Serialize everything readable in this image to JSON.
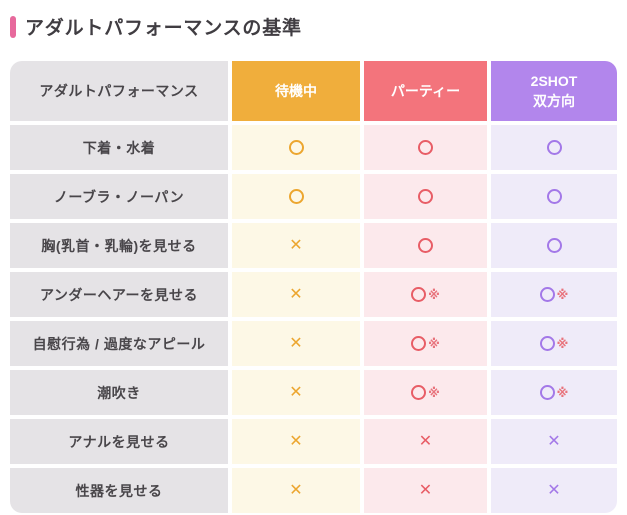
{
  "page": {
    "title": "アダルトパフォーマンスの基準"
  },
  "table": {
    "header": {
      "category_label": "アダルトパフォーマンス",
      "columns": [
        {
          "id": "waiting",
          "label": "待機中",
          "header_bg": "#f0ae3c",
          "cell_bg": "#fdf8e6",
          "symbol_color": "#eca62f"
        },
        {
          "id": "party",
          "label": "パーティー",
          "header_bg": "#f3747c",
          "cell_bg": "#fce9ec",
          "symbol_color": "#e85d66"
        },
        {
          "id": "2shot",
          "label": "2SHOT\n双方向",
          "header_bg": "#b286ec",
          "cell_bg": "#efebf9",
          "symbol_color": "#a378e8"
        }
      ]
    },
    "note_symbol": "※",
    "note_symbol_color": "#e8737c",
    "circle_symbol": "○",
    "cross_symbol": "✕",
    "rows": [
      {
        "label": "下着・水着",
        "cells": [
          "○",
          "○",
          "○"
        ]
      },
      {
        "label": "ノーブラ・ノーパン",
        "cells": [
          "○",
          "○",
          "○"
        ]
      },
      {
        "label": "胸(乳首・乳輪)を見せる",
        "cells": [
          "×",
          "○",
          "○"
        ]
      },
      {
        "label": "アンダーヘアーを見せる",
        "cells": [
          "×",
          "○※",
          "○※"
        ]
      },
      {
        "label": "自慰行為 / 過度なアピール",
        "cells": [
          "×",
          "○※",
          "○※"
        ]
      },
      {
        "label": "潮吹き",
        "cells": [
          "×",
          "○※",
          "○※"
        ]
      },
      {
        "label": "アナルを見せる",
        "cells": [
          "×",
          "×",
          "×"
        ]
      },
      {
        "label": "性器を見せる",
        "cells": [
          "×",
          "×",
          "×"
        ]
      }
    ]
  }
}
